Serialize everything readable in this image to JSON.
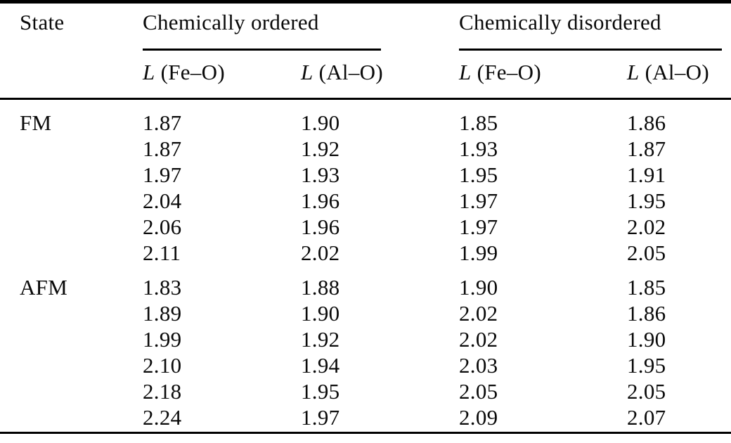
{
  "table": {
    "state_header": "State",
    "groups": [
      {
        "label": "Chemically ordered"
      },
      {
        "label": "Chemically disordered"
      }
    ],
    "subheaders": [
      {
        "symbol": "L",
        "label": "(Fe–O)"
      },
      {
        "symbol": "L",
        "label": "(Al–O)"
      },
      {
        "symbol": "L",
        "label": "(Fe–O)"
      },
      {
        "symbol": "L",
        "label": "(Al–O)"
      }
    ],
    "sections": [
      {
        "state": "FM",
        "rows": [
          [
            "1.87",
            "1.90",
            "1.85",
            "1.86"
          ],
          [
            "1.87",
            "1.92",
            "1.93",
            "1.87"
          ],
          [
            "1.97",
            "1.93",
            "1.95",
            "1.91"
          ],
          [
            "2.04",
            "1.96",
            "1.97",
            "1.95"
          ],
          [
            "2.06",
            "1.96",
            "1.97",
            "2.02"
          ],
          [
            "2.11",
            "2.02",
            "1.99",
            "2.05"
          ]
        ]
      },
      {
        "state": "AFM",
        "rows": [
          [
            "1.83",
            "1.88",
            "1.90",
            "1.85"
          ],
          [
            "1.89",
            "1.90",
            "2.02",
            "1.86"
          ],
          [
            "1.99",
            "1.92",
            "2.02",
            "1.90"
          ],
          [
            "2.10",
            "1.94",
            "2.03",
            "1.95"
          ],
          [
            "2.18",
            "1.95",
            "2.05",
            "2.05"
          ],
          [
            "2.24",
            "1.97",
            "2.09",
            "2.07"
          ]
        ]
      }
    ],
    "colors": {
      "text": "#0a0a0a",
      "rule": "#000000",
      "background": "#ffffff"
    }
  }
}
